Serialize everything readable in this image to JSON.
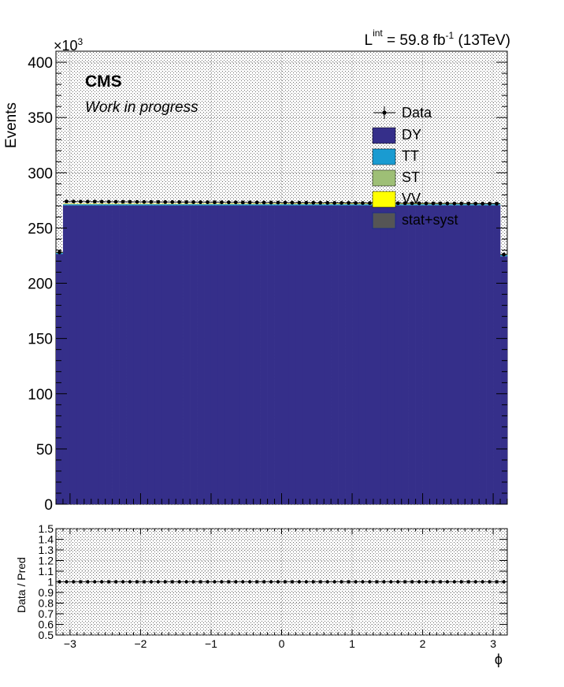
{
  "colors": {
    "dy": "#352f8a",
    "tt": "#1a9bd1",
    "st": "#9ebf76",
    "vv": "#ffff00",
    "band": "#555555",
    "data": "#000000"
  },
  "labels": {
    "exponent_base": "×10",
    "exponent_power": "3",
    "lumi_L": "L",
    "lumi_sup": "int",
    "lumi_value": " = 59.8 fb",
    "lumi_inv": "-1",
    "lumi_energy": " (13TeV)",
    "cms": "CMS",
    "extra": "Work in progress"
  },
  "chart_data": [
    {
      "type": "bar",
      "stacked": true,
      "ylabel": "Events",
      "y_scale_label": "×10^3",
      "xlim": [
        -3.2,
        3.2
      ],
      "ylim": [
        0,
        410
      ],
      "yticks": [
        0,
        50,
        100,
        150,
        200,
        250,
        300,
        350,
        400
      ],
      "grid": true,
      "legend_position": "top-right",
      "legend": [
        "Data",
        "DY",
        "TT",
        "ST",
        "VV",
        "stat+syst"
      ],
      "bins": 64,
      "edge_values": {
        "first": 228,
        "last": 226
      },
      "series": [
        {
          "name": "DY",
          "color": "#352f8a",
          "plateau": 270.5
        },
        {
          "name": "TT",
          "color": "#1a9bd1",
          "plateau": 1.0
        },
        {
          "name": "ST",
          "color": "#9ebf76",
          "plateau": 0.3
        },
        {
          "name": "VV",
          "color": "#ffff00",
          "plateau": 0.3
        },
        {
          "name": "Data",
          "color": "#000000",
          "start": 274,
          "end": 272
        }
      ]
    },
    {
      "type": "scatter",
      "xlabel": "ϕ",
      "ylabel": "Data / Pred",
      "xlim": [
        -3.2,
        3.2
      ],
      "ylim": [
        0.5,
        1.5
      ],
      "yticks": [
        "0.5",
        "0.6",
        "0.7",
        "0.8",
        "0.9",
        "1",
        "1.1",
        "1.2",
        "1.3",
        "1.4",
        "1.5"
      ],
      "xticks": [
        "−3",
        "−2",
        "−1",
        "0",
        "1",
        "2",
        "3"
      ],
      "xtick_values": [
        -3,
        -2,
        -1,
        0,
        1,
        2,
        3
      ],
      "grid": true,
      "ratio_value": 1.0
    }
  ]
}
